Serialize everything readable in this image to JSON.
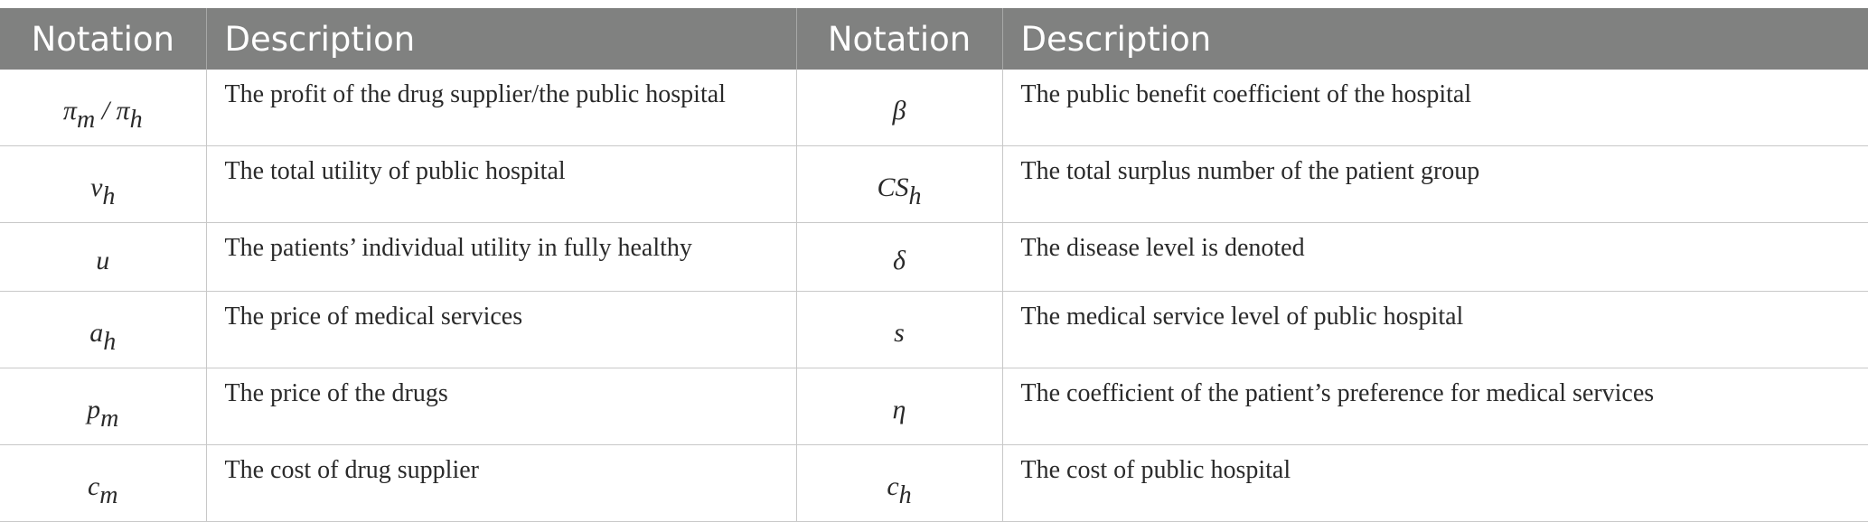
{
  "table": {
    "headers": [
      "Notation",
      "Description",
      "Notation",
      "Description"
    ],
    "rows": [
      {
        "left_symbol": "πm / πh",
        "left_symbol_parts": {
          "a": "π",
          "a_sub": "m",
          "sep": " / ",
          "b": "π",
          "b_sub": "h"
        },
        "left_description": "The profit of the drug supplier/the public hospital",
        "right_symbol": "β",
        "right_description": "The public benefit coefficient of the hospital"
      },
      {
        "left_symbol": "vh",
        "left_symbol_parts": {
          "base": "v",
          "sub": "h"
        },
        "left_description": "The total utility of public hospital",
        "right_symbol": "CSh",
        "right_symbol_parts": {
          "base": "CS",
          "sub": "h"
        },
        "right_description": "The total surplus number of the patient group"
      },
      {
        "left_symbol": "u",
        "left_description": "The patients’ individual utility in fully healthy",
        "right_symbol": "δ",
        "right_description": "The disease level is denoted"
      },
      {
        "left_symbol": "ah",
        "left_symbol_parts": {
          "base": "a",
          "sub": "h"
        },
        "left_description": "The price of medical services",
        "right_symbol": "s",
        "right_description": "The medical service level of public hospital"
      },
      {
        "left_symbol": "pm",
        "left_symbol_parts": {
          "base": "p",
          "sub": "m"
        },
        "left_description": "The price of the drugs",
        "right_symbol": "η",
        "right_description": "The coefficient of the patient’s preference for medical services"
      },
      {
        "left_symbol": "cm",
        "left_symbol_parts": {
          "base": "c",
          "sub": "m"
        },
        "left_description": "The cost of drug supplier",
        "right_symbol": "ch",
        "right_symbol_parts": {
          "base": "c",
          "sub": "h"
        },
        "right_description": "The cost of public hospital"
      }
    ]
  },
  "colors": {
    "header_background": "#808180",
    "header_text": "#ffffff",
    "grid_line": "#c8c8c8"
  }
}
